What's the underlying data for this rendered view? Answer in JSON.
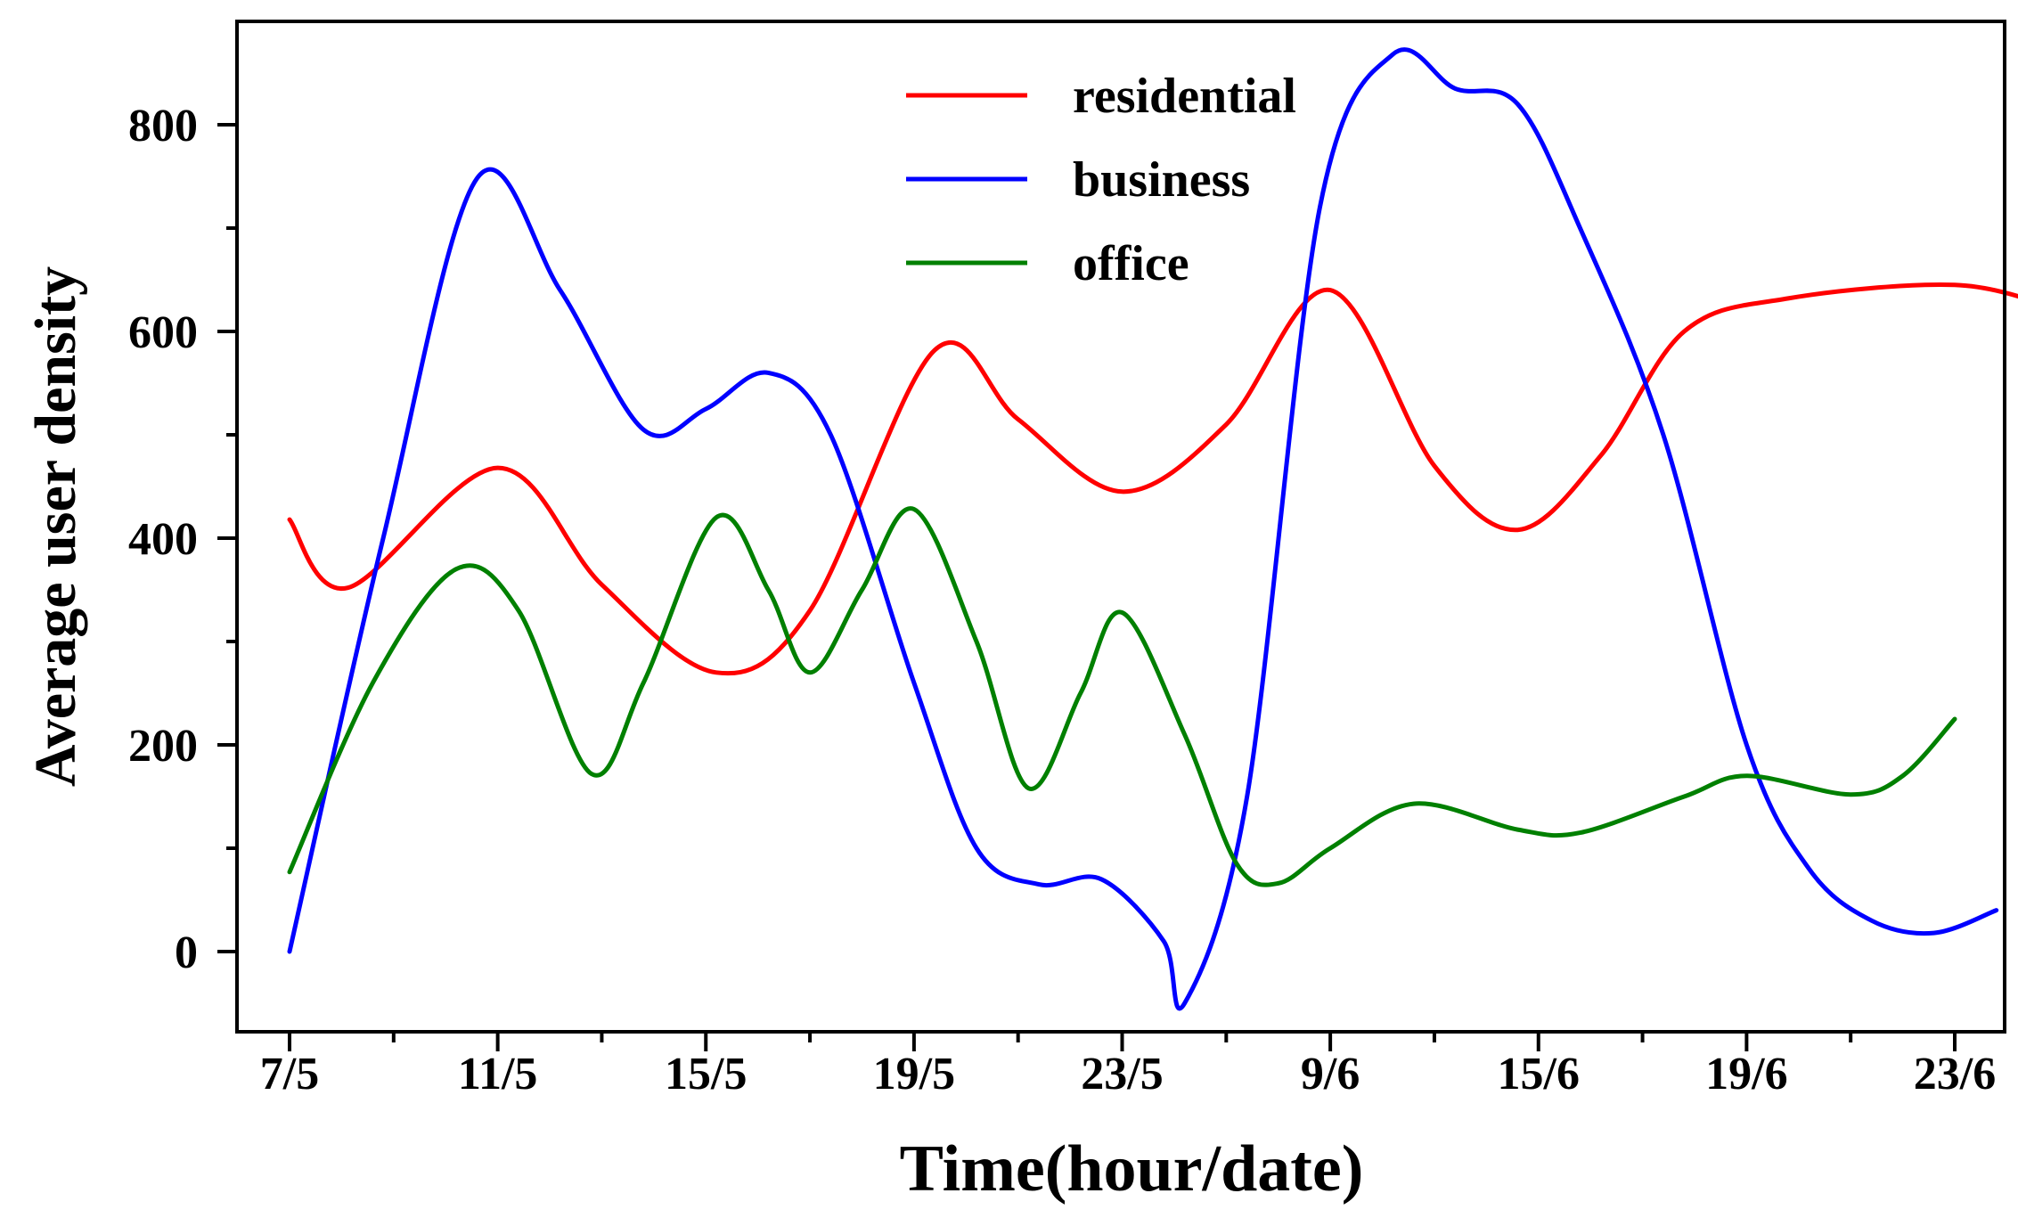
{
  "chart_data": {
    "type": "line",
    "xlabel": "Time(hour/date)",
    "ylabel": "Average user density",
    "categories": [
      "7/5",
      "11/5",
      "15/5",
      "19/5",
      "23/5",
      "9/6",
      "15/6",
      "19/6",
      "23/6"
    ],
    "ylim": [
      -80,
      900
    ],
    "yticks": [
      0,
      200,
      400,
      600,
      800
    ],
    "grid": false,
    "legend_position": "top-center",
    "series": [
      {
        "name": "residential",
        "color": "#ff0000",
        "points": [
          [
            0,
            418
          ],
          [
            0.28,
            352
          ],
          [
            1.0,
            468
          ],
          [
            1.5,
            355
          ],
          [
            2.05,
            270
          ],
          [
            2.5,
            330
          ],
          [
            3.1,
            582
          ],
          [
            3.5,
            515
          ],
          [
            4.0,
            445
          ],
          [
            4.5,
            510
          ],
          [
            5.0,
            640
          ],
          [
            5.5,
            470
          ],
          [
            5.9,
            408
          ],
          [
            6.3,
            480
          ],
          [
            6.7,
            600
          ],
          [
            7.2,
            632
          ],
          [
            8.0,
            645
          ],
          [
            8.5,
            622
          ]
        ]
      },
      {
        "name": "business",
        "color": "#0000ff",
        "points": [
          [
            0,
            0
          ],
          [
            0.45,
            400
          ],
          [
            0.9,
            748
          ],
          [
            1.3,
            640
          ],
          [
            1.7,
            505
          ],
          [
            2.0,
            525
          ],
          [
            2.3,
            560
          ],
          [
            2.6,
            500
          ],
          [
            3.0,
            260
          ],
          [
            3.3,
            100
          ],
          [
            3.6,
            65
          ],
          [
            3.9,
            70
          ],
          [
            4.2,
            10
          ],
          [
            4.3,
            -50
          ],
          [
            4.6,
            150
          ],
          [
            4.95,
            720
          ],
          [
            5.3,
            868
          ],
          [
            5.6,
            835
          ],
          [
            5.9,
            820
          ],
          [
            6.2,
            700
          ],
          [
            6.6,
            500
          ],
          [
            7.0,
            200
          ],
          [
            7.3,
            80
          ],
          [
            7.6,
            30
          ],
          [
            7.9,
            18
          ],
          [
            8.2,
            40
          ]
        ]
      },
      {
        "name": "office",
        "color": "#008000",
        "points": [
          [
            0,
            77
          ],
          [
            0.4,
            260
          ],
          [
            0.8,
            370
          ],
          [
            1.1,
            330
          ],
          [
            1.45,
            172
          ],
          [
            1.7,
            260
          ],
          [
            2.05,
            420
          ],
          [
            2.3,
            350
          ],
          [
            2.5,
            270
          ],
          [
            2.75,
            350
          ],
          [
            3.0,
            428
          ],
          [
            3.3,
            300
          ],
          [
            3.55,
            158
          ],
          [
            3.8,
            250
          ],
          [
            4.0,
            328
          ],
          [
            4.3,
            210
          ],
          [
            4.55,
            85
          ],
          [
            4.75,
            66
          ],
          [
            5.0,
            100
          ],
          [
            5.4,
            143
          ],
          [
            5.9,
            118
          ],
          [
            6.2,
            115
          ],
          [
            6.7,
            150
          ],
          [
            7.0,
            170
          ],
          [
            7.5,
            152
          ],
          [
            7.75,
            170
          ],
          [
            8.0,
            225
          ]
        ]
      }
    ]
  }
}
